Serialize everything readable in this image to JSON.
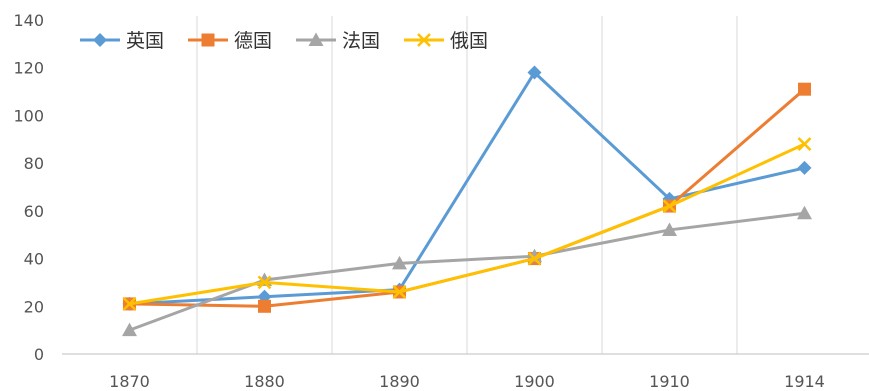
{
  "chart_data": {
    "type": "line",
    "categories": [
      "1870",
      "1880",
      "1890",
      "1900",
      "1910",
      "1914"
    ],
    "ylim": [
      0,
      140
    ],
    "yticks": [
      0,
      20,
      40,
      60,
      80,
      100,
      120,
      140
    ],
    "grid": "vertical",
    "legend_position": "top-left",
    "series": [
      {
        "name": "英国",
        "marker": "diamond",
        "color": "#5b9bd5",
        "values": [
          21,
          24,
          27,
          118,
          65,
          78
        ]
      },
      {
        "name": "德国",
        "marker": "square",
        "color": "#ed7d31",
        "values": [
          21,
          20,
          26,
          40,
          62,
          111
        ]
      },
      {
        "name": "法国",
        "marker": "triangle",
        "color": "#a5a5a5",
        "values": [
          10,
          31,
          38,
          41,
          52,
          59
        ]
      },
      {
        "name": "俄国",
        "marker": "x",
        "color": "#ffc000",
        "values": [
          21,
          30,
          26,
          40,
          62,
          88
        ]
      }
    ]
  }
}
